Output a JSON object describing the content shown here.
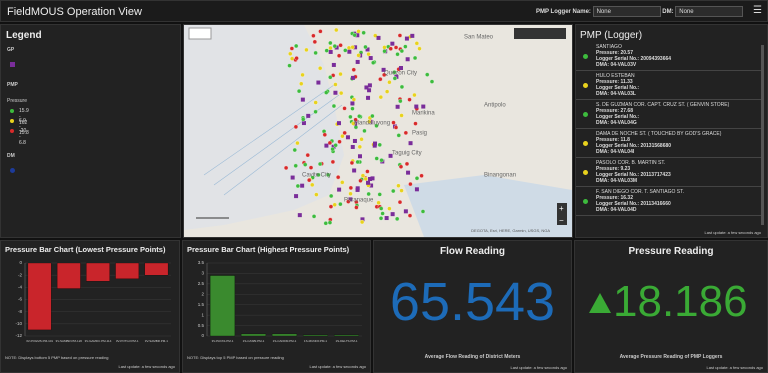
{
  "header": {
    "title": "FieldMOUS Operation View",
    "pmp_label": "PMP Logger Name:",
    "pmp_value": "None",
    "dm_label": "DM:",
    "dm_value": "None"
  },
  "legend": {
    "title": "Legend",
    "gp": "GP",
    "pmp": "PMP",
    "pressure": "Pressure",
    "items": [
      {
        "label": "15.9 - 162",
        "color": "#3dbb3d"
      },
      {
        "label": "6.9 - 15.8",
        "color": "#e8d21d"
      },
      {
        "label": "-20 - 6.8",
        "color": "#d82a2a"
      }
    ],
    "dm": "DM"
  },
  "map": {
    "places": [
      "San Mateo",
      "Quezon City",
      "Marikina",
      "Antipolo",
      "Pasig",
      "Mandaluyong",
      "Taguig City",
      "Cavite City",
      "Binangonan",
      "Paranaque"
    ],
    "attribution": "DEGOTA, Esri, HERE, Garmin, USGS, NGA"
  },
  "pmp_list": {
    "title": "PMP (Logger)",
    "items": [
      {
        "name": "SANTIAGO",
        "pressure": "Pressure: 20.57",
        "serial": "Logger Serial No.: 20094393664",
        "dma": "DMA: 04-VAL03V",
        "color": "#3dbb3d"
      },
      {
        "name": "HULO ESTEBAN",
        "pressure": "Pressure: 11.33",
        "serial": "Logger Serial No.:",
        "dma": "DMA: 04-VAL03L",
        "color": "#e8d21d"
      },
      {
        "name": "S. DE GUZMAN COR. CAPT. CRUZ ST. ( GENVIN STORE)",
        "pressure": "Pressure: 27.68",
        "serial": "Logger Serial No.:",
        "dma": "DMA: 04-VAL04G",
        "color": "#3dbb3d"
      },
      {
        "name": "DAMA DE NOCHE ST. ( TOUCHED BY GOD'S GRACE)",
        "pressure": "Pressure: 11.8",
        "serial": "Logger Serial No.: 20131568680",
        "dma": "DMA: 04-VAL04I",
        "color": "#e8d21d"
      },
      {
        "name": "PASOLO COR. B. MARTIN ST.",
        "pressure": "Pressure: 9.23",
        "serial": "Logger Serial No.: 20113717423",
        "dma": "DMA: 04-VAL03M",
        "color": "#e8d21d"
      },
      {
        "name": "F. SAN DIEGO COR. T. SANTIAGO ST.",
        "pressure": "Pressure: 16.32",
        "serial": "Logger Serial No.: 20113416660",
        "dma": "DMA: 04-VAL04D",
        "color": "#3dbb3d"
      }
    ],
    "update": "Last update: a few seconds ago"
  },
  "chart_data": [
    {
      "type": "bar",
      "title": "Pressure Bar Chart (Lowest Pressure Points)",
      "categories": [
        "3V-POGMS.PM-101",
        "3V-SAMBR.PM-120",
        "3V-GAMDC.PM-114",
        "3V-POTGV.PM-1",
        "3V-SAMBR.PM-1"
      ],
      "values": [
        -11,
        -4.2,
        -3,
        -2.6,
        -2
      ],
      "color": "#c9252b",
      "ylim": [
        -12,
        0
      ],
      "yticks": [
        0,
        -2,
        -4,
        -6,
        -8,
        -10,
        -12
      ],
      "grid": true,
      "note": "NOTE: Displays bottom 5 PMP based on pressure reading",
      "update": "Last update: a few seconds ago"
    },
    {
      "type": "bar",
      "title": "Pressure Bar Chart (Highest Pressure Points)",
      "categories": [
        "3V-PAYAS.PM-1",
        "1S-CASBI.PM-1",
        "1S-CADDM.PM-1",
        "1S-MUNDF.PM-1",
        "1S-DELTS.PM-1"
      ],
      "values": [
        2.9,
        0.1,
        0.1,
        0.05,
        0.05
      ],
      "color": "#3a8a2e",
      "ylim": [
        0,
        3.5
      ],
      "yticks": [
        0,
        0.5,
        1,
        1.5,
        2,
        2.5,
        3,
        3.5
      ],
      "grid": true,
      "note": "NOTE: Displays top 5 PMP based on pressure reading",
      "update": "Last update: a few seconds ago"
    }
  ],
  "flow": {
    "title": "Flow Reading",
    "value": 65.543,
    "caption": "Average Flow Reading of District Meters",
    "update": "Last update: a few seconds ago"
  },
  "pressure": {
    "title": "Pressure Reading",
    "value": 18.186,
    "caption": "Average Pressure Reading of PMP Loggers",
    "update": "Last update: a few seconds ago"
  }
}
